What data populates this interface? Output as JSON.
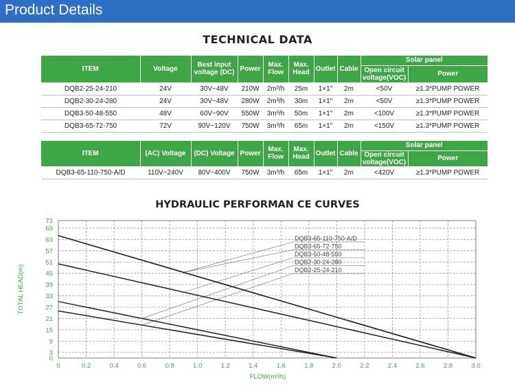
{
  "header": {
    "title": "Product Details"
  },
  "table1": {
    "title": "TECHNICAL DATA",
    "columns": {
      "item": "ITEM",
      "voltage": "Voltage",
      "input": "Best input voltage (DC)",
      "power": "Power",
      "flow": "Max. Flow",
      "head": "Max. Head",
      "outlet": "Outlet",
      "cable": "Cable",
      "solar": "Solar panel",
      "voc": "Open circuit voltage(VOC)",
      "spower": "Power"
    },
    "rows": [
      {
        "item": "DQB2-25-24-210",
        "voltage": "24V",
        "input": "30V~48V",
        "power": "210W",
        "flow": "2m³/h",
        "head": "25m",
        "outlet": "1×1\"",
        "cable": "2m",
        "voc": "<50V",
        "spower": "≥1.3*PUMP POWER"
      },
      {
        "item": "DQB2-30-24-280",
        "voltage": "24V",
        "input": "30V~48V",
        "power": "280W",
        "flow": "2m³/h",
        "head": "30m",
        "outlet": "1×1\"",
        "cable": "2m",
        "voc": "<50V",
        "spower": "≥1.3*PUMP POWER"
      },
      {
        "item": "DQB3-50-48-550",
        "voltage": "48V",
        "input": "60V~90V",
        "power": "550W",
        "flow": "3m³/h",
        "head": "50m",
        "outlet": "1×1\"",
        "cable": "2m",
        "voc": "<100V",
        "spower": "≥1.3*PUMP POWER"
      },
      {
        "item": "DQB3-65-72-750",
        "voltage": "72V",
        "input": "90V~120V",
        "power": "750W",
        "flow": "3m³/h",
        "head": "65m",
        "outlet": "1×1\"",
        "cable": "2m",
        "voc": "<150V",
        "spower": "≥1.3*PUMP POWER"
      }
    ]
  },
  "table2": {
    "columns": {
      "item": "ITEM",
      "ac": "(AC) Voltage",
      "dc": "(DC) Voltage",
      "power": "Power",
      "flow": "Max. Flow",
      "head": "Max. Head",
      "outlet": "Outlet",
      "cable": "Cable",
      "solar": "Solar panel",
      "voc": "Open circuit voltage(VOC)",
      "spower": "Power"
    },
    "rows": [
      {
        "item": "DQB3-65-110-750-A/D",
        "ac": "110V~240V",
        "dc": "80V~400V",
        "power": "750W",
        "flow": "3m³/h",
        "head": "65m",
        "outlet": "1×1\"",
        "cable": "2m",
        "voc": "<420V",
        "spower": "≥1.3*PUMP POWER"
      }
    ]
  },
  "chart_data": {
    "type": "line",
    "title": "HYDRAULIC PERFORMAN CE CURVES",
    "xlabel": "FLOW(m³/h)",
    "ylabel": "TOTAL HEAD(m)",
    "xlim": [
      0,
      3.0
    ],
    "ylim": [
      0,
      73
    ],
    "xticks": [
      "0",
      "0.2",
      "0.4",
      "0.6",
      "0.8",
      "1.0",
      "1.2",
      "1.4",
      "1.6",
      "1.8",
      "2.0",
      "2.2",
      "2.4",
      "2.6",
      "2.8",
      "3.0"
    ],
    "yticks": [
      "0",
      "3",
      "9",
      "15",
      "21",
      "27",
      "33",
      "39",
      "45",
      "51",
      "57",
      "63",
      "69",
      "73"
    ],
    "grid": true,
    "series": [
      {
        "name": "DQB3-65-110-750-A/D",
        "x": [
          0,
          3.0
        ],
        "y": [
          65,
          0
        ]
      },
      {
        "name": "DQB3-65-72-750",
        "x": [
          0,
          3.0
        ],
        "y": [
          65,
          0
        ]
      },
      {
        "name": "DQB3-50-48-550",
        "x": [
          0,
          3.0
        ],
        "y": [
          50,
          0
        ]
      },
      {
        "name": "DQB2-30-24-280",
        "x": [
          0,
          2.0
        ],
        "y": [
          30,
          0
        ]
      },
      {
        "name": "DQB2-25-24-210",
        "x": [
          0,
          2.0
        ],
        "y": [
          25,
          0
        ]
      }
    ],
    "colors": {
      "line": "#222222",
      "axis_text": "#3fa648",
      "grid": "#999999",
      "header_green": "#3fa648",
      "topbar": "#2d6fc4"
    }
  }
}
